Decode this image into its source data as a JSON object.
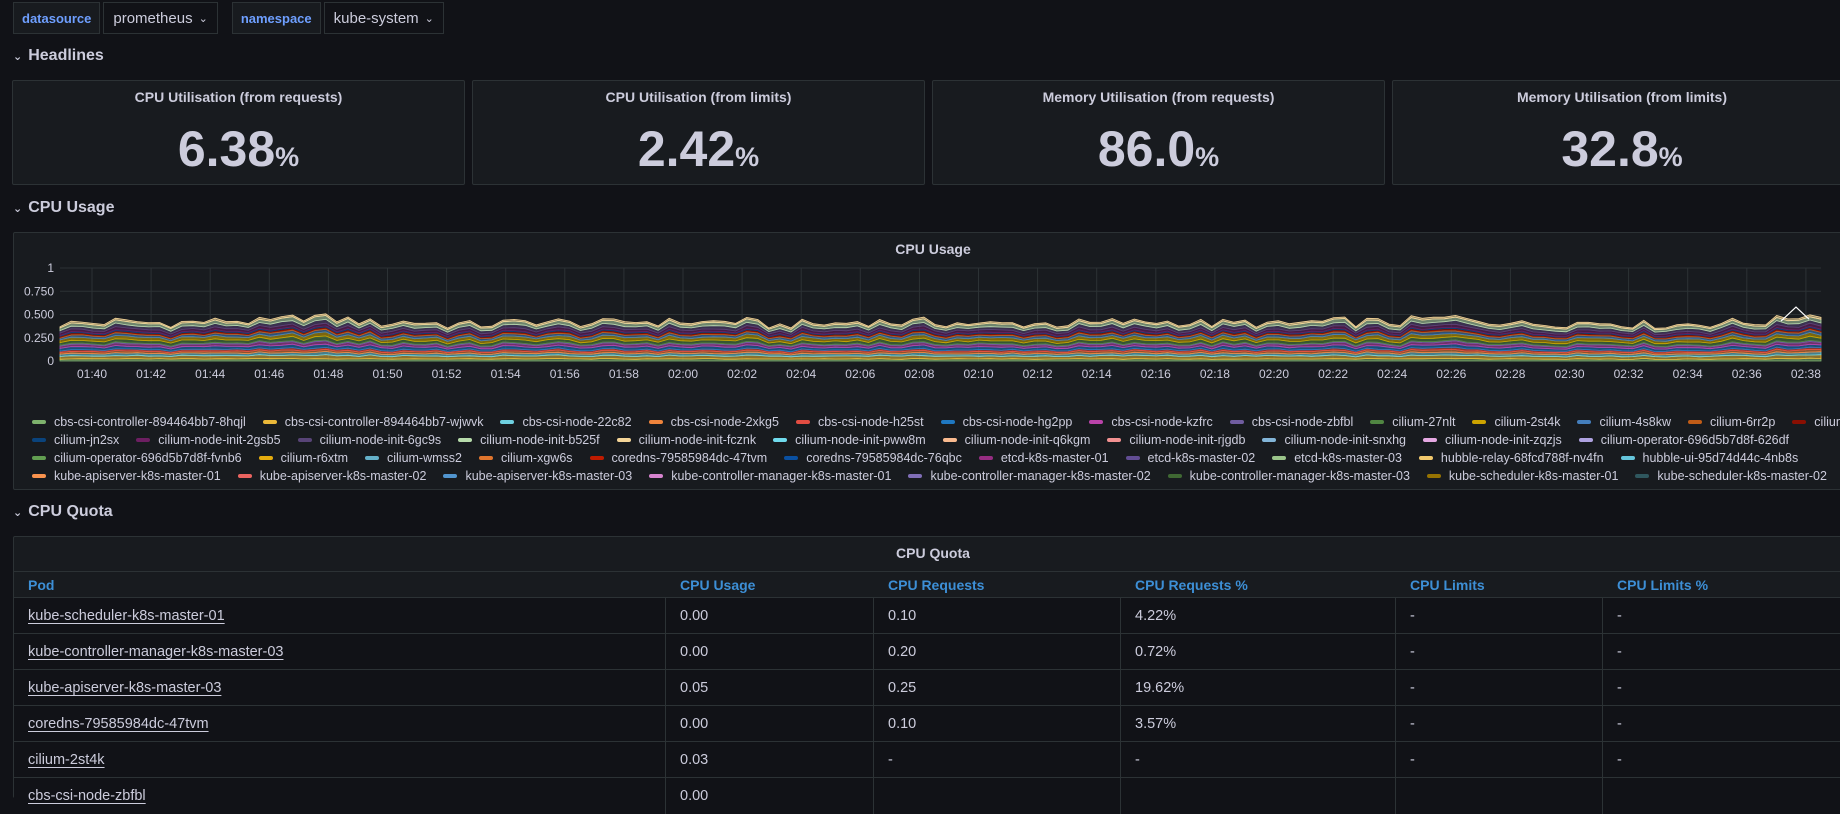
{
  "variables": [
    {
      "label": "datasource",
      "value": "prometheus"
    },
    {
      "label": "namespace",
      "value": "kube-system"
    }
  ],
  "rows": {
    "headlines": "Headlines",
    "cpu_usage": "CPU Usage",
    "cpu_quota": "CPU Quota"
  },
  "stats": [
    {
      "title": "CPU Utilisation (from requests)",
      "value": "6.38",
      "unit": "%"
    },
    {
      "title": "CPU Utilisation (from limits)",
      "value": "2.42",
      "unit": "%"
    },
    {
      "title": "Memory Utilisation (from requests)",
      "value": "86.0",
      "unit": "%"
    },
    {
      "title": "Memory Utilisation (from limits)",
      "value": "32.8",
      "unit": "%"
    }
  ],
  "cpu_chart": {
    "title": "CPU Usage"
  },
  "chart_data": {
    "type": "area",
    "title": "CPU Usage",
    "stacked": true,
    "x": [
      "01:40",
      "01:42",
      "01:44",
      "01:46",
      "01:48",
      "01:50",
      "01:52",
      "01:54",
      "01:56",
      "01:58",
      "02:00",
      "02:02",
      "02:04",
      "02:06",
      "02:08",
      "02:10",
      "02:12",
      "02:14",
      "02:16",
      "02:18",
      "02:20",
      "02:22",
      "02:24",
      "02:26",
      "02:28",
      "02:30",
      "02:32",
      "02:34",
      "02:36",
      "02:38"
    ],
    "yticks": [
      "0",
      "0.250",
      "0.500",
      "0.750",
      "1"
    ],
    "ylim": [
      0,
      1
    ],
    "total_approx": [
      0.4,
      0.42,
      0.41,
      0.43,
      0.48,
      0.42,
      0.41,
      0.4,
      0.42,
      0.41,
      0.42,
      0.41,
      0.4,
      0.41,
      0.42,
      0.4,
      0.41,
      0.4,
      0.41,
      0.4,
      0.41,
      0.42,
      0.41,
      0.47,
      0.42,
      0.4,
      0.41,
      0.4,
      0.42,
      0.52
    ],
    "legend": [
      {
        "name": "cbs-csi-controller-894464bb7-8hqjl",
        "color": "#7eb26d"
      },
      {
        "name": "cbs-csi-controller-894464bb7-wjwvk",
        "color": "#eab839"
      },
      {
        "name": "cbs-csi-node-22c82",
        "color": "#6ed0e0"
      },
      {
        "name": "cbs-csi-node-2xkg5",
        "color": "#ef843c"
      },
      {
        "name": "cbs-csi-node-h25st",
        "color": "#e24d42"
      },
      {
        "name": "cbs-csi-node-hg2pp",
        "color": "#1f78c1"
      },
      {
        "name": "cbs-csi-node-kzfrc",
        "color": "#ba43a9"
      },
      {
        "name": "cbs-csi-node-zbfbl",
        "color": "#705da0"
      },
      {
        "name": "cilium-27nlt",
        "color": "#508642"
      },
      {
        "name": "cilium-2st4k",
        "color": "#cca300"
      },
      {
        "name": "cilium-4s8kw",
        "color": "#447ebc"
      },
      {
        "name": "cilium-6rr2p",
        "color": "#c15c17"
      },
      {
        "name": "cilium-hvhkg",
        "color": "#890f02"
      },
      {
        "name": "cilium-jn2sx",
        "color": "#0a437c"
      },
      {
        "name": "cilium-node-init-2gsb5",
        "color": "#6d1f62"
      },
      {
        "name": "cilium-node-init-6gc9s",
        "color": "#584477"
      },
      {
        "name": "cilium-node-init-b525f",
        "color": "#b7dbab"
      },
      {
        "name": "cilium-node-init-fcznk",
        "color": "#f4d598"
      },
      {
        "name": "cilium-node-init-pww8m",
        "color": "#70dbed"
      },
      {
        "name": "cilium-node-init-q6kgm",
        "color": "#f9ba8f"
      },
      {
        "name": "cilium-node-init-rjgdb",
        "color": "#f29191"
      },
      {
        "name": "cilium-node-init-snxhg",
        "color": "#82b5d8"
      },
      {
        "name": "cilium-node-init-zqzjs",
        "color": "#e5a8e2"
      },
      {
        "name": "cilium-operator-696d5b7d8f-626df",
        "color": "#aea2e0"
      },
      {
        "name": "cilium-operator-696d5b7d8f-fvnb6",
        "color": "#629e51"
      },
      {
        "name": "cilium-r6xtm",
        "color": "#e5ac0e"
      },
      {
        "name": "cilium-wmss2",
        "color": "#64b0c8"
      },
      {
        "name": "cilium-xgw6s",
        "color": "#e0752d"
      },
      {
        "name": "coredns-79585984dc-47tvm",
        "color": "#bf1b00"
      },
      {
        "name": "coredns-79585984dc-76qbc",
        "color": "#0a50a1"
      },
      {
        "name": "etcd-k8s-master-01",
        "color": "#962d82"
      },
      {
        "name": "etcd-k8s-master-02",
        "color": "#614d93"
      },
      {
        "name": "etcd-k8s-master-03",
        "color": "#9ac48a"
      },
      {
        "name": "hubble-relay-68fcd788f-nv4fn",
        "color": "#f2c96d"
      },
      {
        "name": "hubble-ui-95d74d44c-4nb8s",
        "color": "#65c5db"
      },
      {
        "name": "kube-apiserver-k8s-master-01",
        "color": "#f9934e"
      },
      {
        "name": "kube-apiserver-k8s-master-02",
        "color": "#ea6460"
      },
      {
        "name": "kube-apiserver-k8s-master-03",
        "color": "#5195ce"
      },
      {
        "name": "kube-controller-manager-k8s-master-01",
        "color": "#d683ce"
      },
      {
        "name": "kube-controller-manager-k8s-master-02",
        "color": "#806eb7"
      },
      {
        "name": "kube-controller-manager-k8s-master-03",
        "color": "#3f6833"
      },
      {
        "name": "kube-scheduler-k8s-master-01",
        "color": "#967302"
      },
      {
        "name": "kube-scheduler-k8s-master-02",
        "color": "#2f575e"
      }
    ]
  },
  "quota": {
    "title": "CPU Quota",
    "columns": [
      "Pod",
      "CPU Usage",
      "CPU Requests",
      "CPU Requests %",
      "CPU Limits",
      "CPU Limits %"
    ],
    "rows": [
      [
        "kube-scheduler-k8s-master-01",
        "0.00",
        "0.10",
        "4.22%",
        "-",
        "-"
      ],
      [
        "kube-controller-manager-k8s-master-03",
        "0.00",
        "0.20",
        "0.72%",
        "-",
        "-"
      ],
      [
        "kube-apiserver-k8s-master-03",
        "0.05",
        "0.25",
        "19.62%",
        "-",
        "-"
      ],
      [
        "coredns-79585984dc-47tvm",
        "0.00",
        "0.10",
        "3.57%",
        "-",
        "-"
      ],
      [
        "cilium-2st4k",
        "0.03",
        "-",
        "-",
        "-",
        "-"
      ],
      [
        "cbs-csi-node-zbfbl",
        "0.00",
        "",
        "",
        "",
        ""
      ]
    ]
  }
}
